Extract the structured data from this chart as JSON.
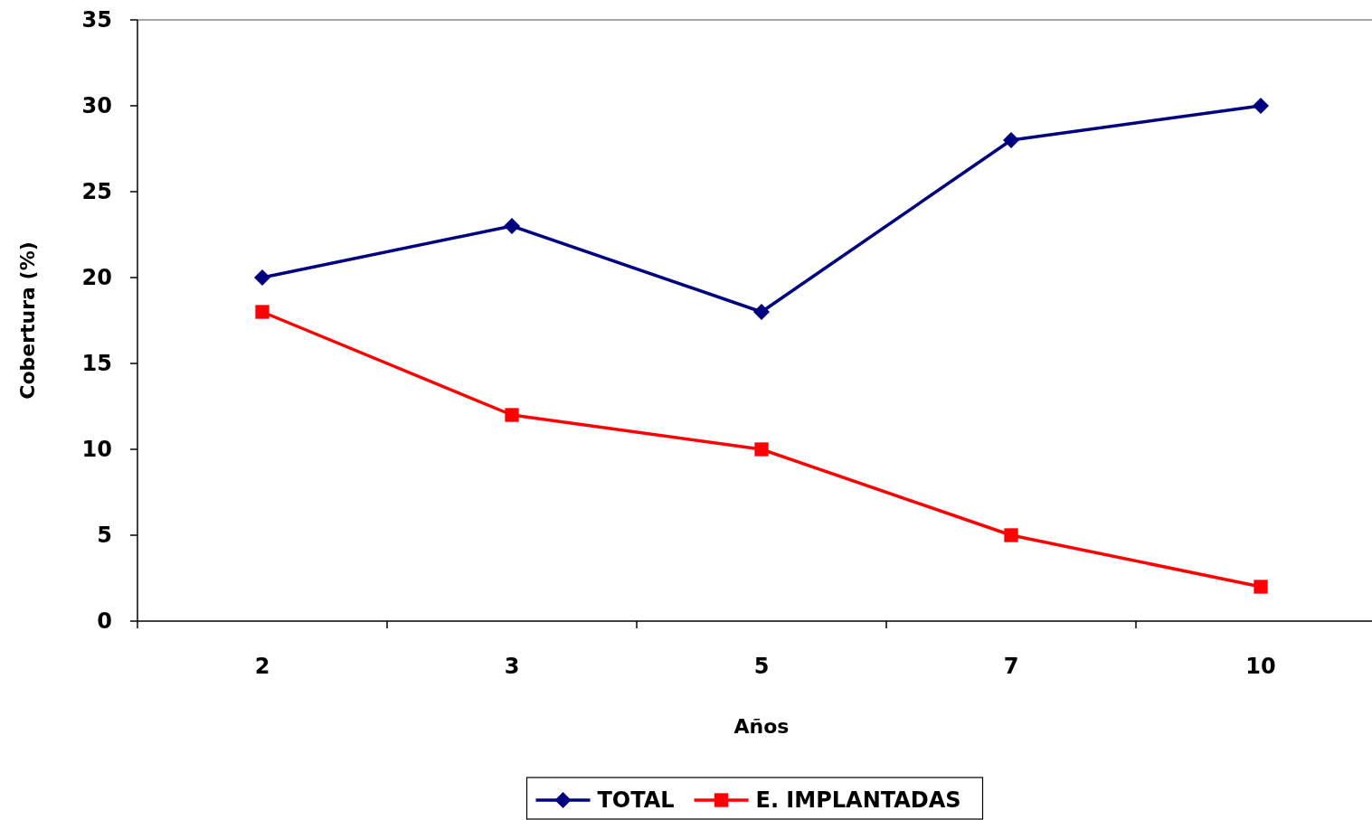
{
  "chart_data": {
    "type": "line",
    "xlabel": "Años",
    "ylabel": "Cobertura (%)",
    "categories": [
      "2",
      "3",
      "5",
      "7",
      "10"
    ],
    "series": [
      {
        "name": "TOTAL",
        "color": "#000080",
        "marker": "diamond",
        "values": [
          20,
          23,
          18,
          28,
          30
        ]
      },
      {
        "name": "E. IMPLANTADAS",
        "color": "#ff0000",
        "marker": "square",
        "values": [
          18,
          12,
          10,
          5,
          2
        ]
      }
    ],
    "ylim": [
      0,
      35
    ],
    "yticks": [
      0,
      5,
      10,
      15,
      20,
      25,
      30,
      35
    ],
    "grid": false,
    "legend": "bottom"
  }
}
